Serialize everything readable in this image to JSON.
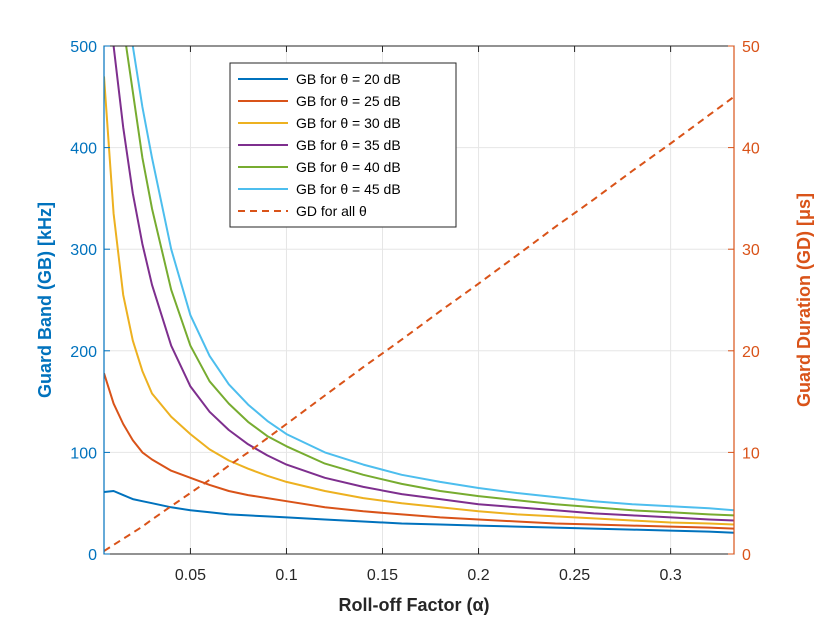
{
  "chart_data": {
    "type": "line",
    "title": "",
    "xlabel": "Roll-off Factor (α)",
    "ylabel_left": "Guard Band (GB) [kHz]",
    "ylabel_right": "Guard Duration (GD) [μs]",
    "xlim": [
      0.005,
      0.333
    ],
    "ylim_left": [
      0,
      500
    ],
    "ylim_right": [
      0,
      50
    ],
    "x_ticks": [
      0.05,
      0.1,
      0.15,
      0.2,
      0.25,
      0.3
    ],
    "x_tick_labels": [
      "0.05",
      "0.1",
      "0.15",
      "0.2",
      "0.25",
      "0.3"
    ],
    "y_left_ticks": [
      0,
      100,
      200,
      300,
      400,
      500
    ],
    "y_left_tick_labels": [
      "0",
      "100",
      "200",
      "300",
      "400",
      "500"
    ],
    "y_right_ticks": [
      0,
      10,
      20,
      30,
      40,
      50
    ],
    "y_right_tick_labels": [
      "0",
      "10",
      "20",
      "30",
      "40",
      "50"
    ],
    "grid": true,
    "legend_position": "top-left-center",
    "colors": {
      "left_axis": "#0072BD",
      "right_axis": "#D95319"
    },
    "x": [
      0.005,
      0.01,
      0.015,
      0.02,
      0.025,
      0.03,
      0.04,
      0.05,
      0.06,
      0.07,
      0.08,
      0.09,
      0.1,
      0.12,
      0.14,
      0.16,
      0.18,
      0.2,
      0.22,
      0.24,
      0.26,
      0.28,
      0.3,
      0.32,
      0.333
    ],
    "series": [
      {
        "name": "GB for θ = 20 dB",
        "axis": "left",
        "color": "#0072BD",
        "dashed": false,
        "values": [
          61,
          62,
          58,
          54,
          52,
          50,
          46,
          43,
          41,
          39,
          38,
          37,
          36,
          34,
          32,
          30,
          29,
          28,
          27,
          26,
          25,
          24,
          23,
          22,
          21
        ]
      },
      {
        "name": "GB for θ = 25 dB",
        "axis": "left",
        "color": "#D95319",
        "dashed": false,
        "values": [
          178,
          148,
          128,
          112,
          100,
          93,
          82,
          75,
          68,
          62,
          58,
          55,
          52,
          46,
          42,
          39,
          36,
          34,
          32,
          30,
          29,
          28,
          27,
          26,
          25
        ]
      },
      {
        "name": "GB for θ = 30 dB",
        "axis": "left",
        "color": "#EDB120",
        "dashed": false,
        "values": [
          470,
          335,
          255,
          210,
          180,
          158,
          135,
          118,
          103,
          92,
          84,
          77,
          71,
          62,
          55,
          50,
          46,
          42,
          39,
          37,
          35,
          33,
          31,
          30,
          29
        ]
      },
      {
        "name": "GB for θ = 35 dB",
        "axis": "left",
        "color": "#7E2F8E",
        "dashed": false,
        "values": [
          520,
          500,
          420,
          355,
          305,
          265,
          205,
          165,
          140,
          122,
          108,
          97,
          88,
          75,
          66,
          59,
          54,
          49,
          46,
          43,
          40,
          38,
          36,
          34,
          33
        ]
      },
      {
        "name": "GB for θ = 40 dB",
        "axis": "left",
        "color": "#77AC30",
        "dashed": false,
        "values": [
          520,
          520,
          520,
          455,
          390,
          340,
          260,
          205,
          170,
          148,
          130,
          116,
          106,
          89,
          78,
          69,
          62,
          57,
          53,
          49,
          46,
          43,
          41,
          39,
          38
        ]
      },
      {
        "name": "GB for θ = 45 dB",
        "axis": "left",
        "color": "#4DBEEE",
        "dashed": false,
        "values": [
          520,
          520,
          520,
          500,
          440,
          390,
          300,
          235,
          195,
          167,
          147,
          131,
          118,
          100,
          88,
          78,
          71,
          65,
          60,
          56,
          52,
          49,
          47,
          45,
          43
        ]
      },
      {
        "name": "GD for all θ",
        "axis": "right",
        "color": "#D95319",
        "dashed": true,
        "values": [
          0.3,
          0.9,
          1.5,
          2.1,
          2.7,
          3.4,
          4.7,
          6.0,
          7.3,
          8.7,
          10.0,
          11.4,
          12.8,
          15.6,
          18.4,
          21.1,
          23.9,
          26.6,
          29.4,
          32.2,
          34.9,
          37.7,
          40.4,
          43.2,
          45.0
        ]
      }
    ]
  }
}
